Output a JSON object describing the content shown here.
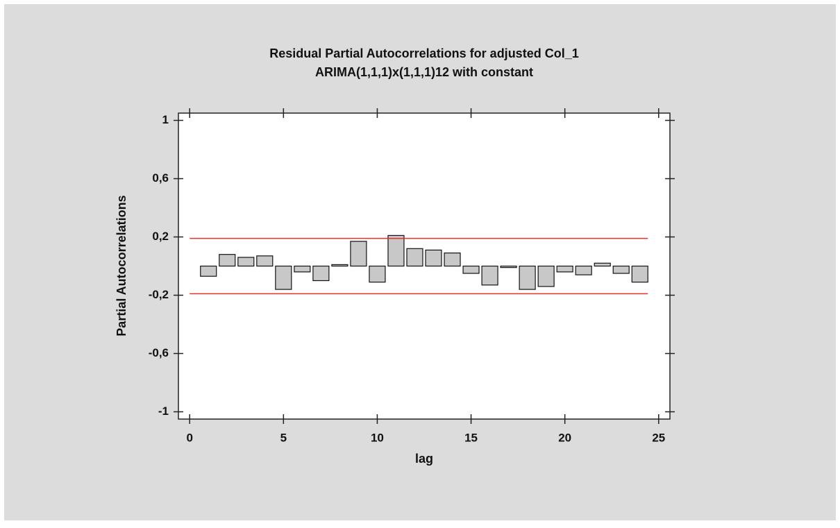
{
  "chart_data": {
    "type": "bar",
    "title": "Residual Partial Autocorrelations for adjusted Col_1",
    "subtitle": "ARIMA(1,1,1)x(1,1,1)12 with constant",
    "x_label": "lag",
    "y_label": "Partial Autocorrelations",
    "x": [
      1,
      2,
      3,
      4,
      5,
      6,
      7,
      8,
      9,
      10,
      11,
      12,
      13,
      14,
      15,
      16,
      17,
      18,
      19,
      20,
      21,
      22,
      23,
      24
    ],
    "values": [
      -0.07,
      0.08,
      0.06,
      0.07,
      -0.16,
      -0.04,
      -0.1,
      0.01,
      0.17,
      -0.11,
      0.21,
      0.12,
      0.11,
      0.09,
      -0.05,
      -0.13,
      -0.01,
      -0.16,
      -0.14,
      -0.04,
      -0.06,
      0.02,
      -0.05,
      -0.11
    ],
    "color": "#c8c8c8",
    "limits": [
      0.19,
      -0.19
    ],
    "limit_color": "#e8302a",
    "xlim": [
      -0.6,
      25.6
    ],
    "xticks": [
      0,
      5,
      10,
      15,
      20,
      25
    ],
    "ylim": [
      -1.05,
      1.05
    ],
    "yticks": [
      -1,
      {
        "value": -0.6,
        "label": "-0,6"
      },
      {
        "value": -0.2,
        "label": "-0,2"
      },
      {
        "value": 0.2,
        "label": "0,2"
      },
      {
        "value": 0.6,
        "label": "0,6"
      },
      1
    ]
  }
}
